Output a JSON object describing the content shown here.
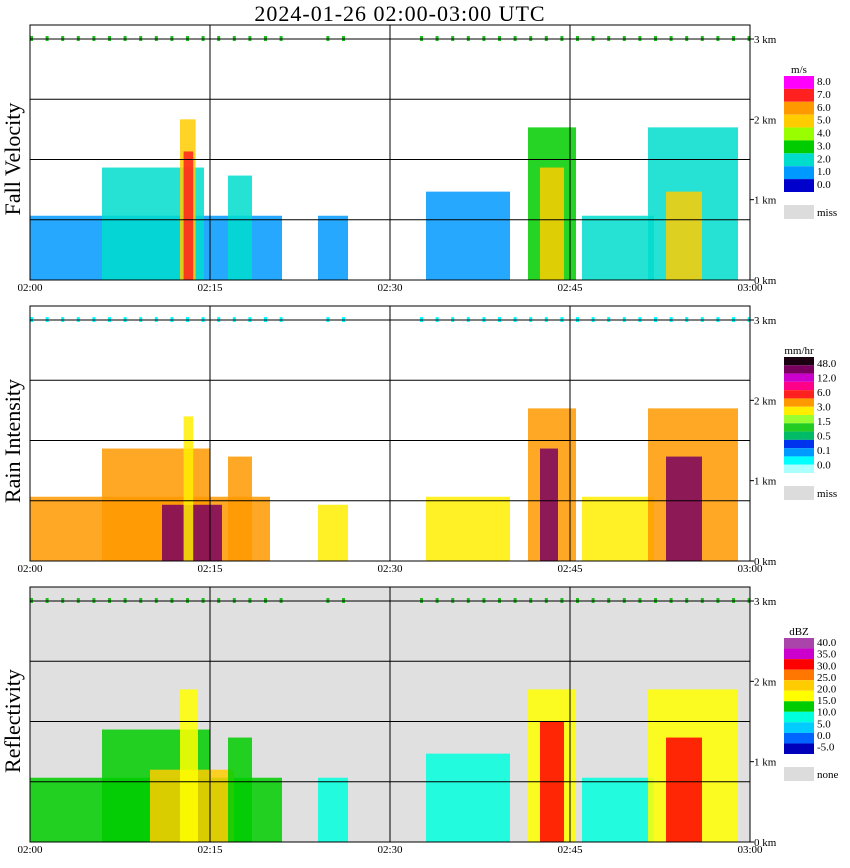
{
  "title": "2024-01-26  02:00-03:00 UTC",
  "x_ticks": [
    "02:00",
    "02:15",
    "02:30",
    "02:45",
    "03:00"
  ],
  "height_ticks": [
    "3 km",
    "2 km",
    "1 km",
    "0 km"
  ],
  "chart_data": [
    {
      "type": "heatmap",
      "ylabel": "Fall Velocity",
      "x_range": [
        "02:00",
        "03:00"
      ],
      "y_range_km": [
        0,
        3
      ],
      "grid": true,
      "legend_unit": "m/s",
      "legend_position": "right",
      "legend_levels": [
        "8.0",
        "7.0",
        "6.0",
        "5.0",
        "4.0",
        "3.0",
        "2.0",
        "1.0",
        "0.0"
      ],
      "legend_colors": [
        "#ff00ff",
        "#ff2020",
        "#ff9900",
        "#ffcc00",
        "#99ff00",
        "#00cc00",
        "#00ddcc",
        "#0099ff",
        "#0000cc"
      ],
      "missing_label": "miss",
      "echo_cells": [
        {
          "t0": 0.0,
          "t1": 21.0,
          "top_km": 0.8,
          "value": 1.0
        },
        {
          "t0": 6.0,
          "t1": 14.5,
          "top_km": 1.4,
          "value": 2.0
        },
        {
          "t0": 12.5,
          "t1": 13.8,
          "top_km": 2.0,
          "value": 5.0
        },
        {
          "t0": 12.8,
          "t1": 13.6,
          "top_km": 1.6,
          "value": 7.0
        },
        {
          "t0": 16.5,
          "t1": 18.5,
          "top_km": 1.3,
          "value": 2.0
        },
        {
          "t0": 24.0,
          "t1": 26.5,
          "top_km": 0.8,
          "value": 1.0
        },
        {
          "t0": 33.0,
          "t1": 40.0,
          "top_km": 1.1,
          "value": 1.0
        },
        {
          "t0": 41.5,
          "t1": 45.5,
          "top_km": 1.9,
          "value": 3.0
        },
        {
          "t0": 42.5,
          "t1": 44.5,
          "top_km": 1.4,
          "value": 5.0
        },
        {
          "t0": 46.0,
          "t1": 52.0,
          "top_km": 0.8,
          "value": 2.0
        },
        {
          "t0": 51.5,
          "t1": 59.0,
          "top_km": 1.9,
          "value": 2.0
        },
        {
          "t0": 53.0,
          "t1": 56.0,
          "top_km": 1.1,
          "value": 5.0
        }
      ]
    },
    {
      "type": "heatmap",
      "ylabel": "Rain Intensity",
      "x_range": [
        "02:00",
        "03:00"
      ],
      "y_range_km": [
        0,
        3
      ],
      "grid": true,
      "legend_unit": "mm/hr",
      "legend_position": "right",
      "legend_levels": [
        "48.0",
        "12.0",
        "6.0",
        "3.0",
        "1.5",
        "0.5",
        "0.1",
        "0.0"
      ],
      "legend_colors": [
        "#1a0010",
        "#7a0060",
        "#cc00cc",
        "#ff0088",
        "#ff2020",
        "#ff9900",
        "#ffee00",
        "#99ff33",
        "#22cc22",
        "#00bb66",
        "#0033ee",
        "#0099ff",
        "#00ffff",
        "#aaffff"
      ],
      "missing_label": "miss",
      "echo_cells": [
        {
          "t0": 0.0,
          "t1": 20.0,
          "top_km": 0.8,
          "value": 0.5
        },
        {
          "t0": 6.0,
          "t1": 15.0,
          "top_km": 1.4,
          "value": 0.5
        },
        {
          "t0": 11.0,
          "t1": 16.0,
          "top_km": 0.7,
          "value": 12.0
        },
        {
          "t0": 12.8,
          "t1": 13.6,
          "top_km": 1.8,
          "value": 0.1
        },
        {
          "t0": 16.5,
          "t1": 18.5,
          "top_km": 1.3,
          "value": 0.5
        },
        {
          "t0": 24.0,
          "t1": 26.5,
          "top_km": 0.7,
          "value": 0.1
        },
        {
          "t0": 33.0,
          "t1": 40.0,
          "top_km": 0.8,
          "value": 0.1
        },
        {
          "t0": 41.5,
          "t1": 45.5,
          "top_km": 1.9,
          "value": 0.5
        },
        {
          "t0": 42.5,
          "t1": 44.0,
          "top_km": 1.4,
          "value": 12.0
        },
        {
          "t0": 46.0,
          "t1": 52.0,
          "top_km": 0.8,
          "value": 0.1
        },
        {
          "t0": 51.5,
          "t1": 59.0,
          "top_km": 1.9,
          "value": 0.5
        },
        {
          "t0": 53.0,
          "t1": 56.0,
          "top_km": 1.3,
          "value": 12.0
        }
      ]
    },
    {
      "type": "heatmap",
      "ylabel": "Reflectivity",
      "x_range": [
        "02:00",
        "03:00"
      ],
      "y_range_km": [
        0,
        3
      ],
      "grid": true,
      "legend_unit": "dBZ",
      "legend_position": "right",
      "legend_levels": [
        "40.0",
        "35.0",
        "30.0",
        "25.0",
        "20.0",
        "15.0",
        "10.0",
        "5.0",
        "0.0",
        "-5.0"
      ],
      "legend_colors": [
        "#aa44aa",
        "#cc00cc",
        "#ff0000",
        "#ff7700",
        "#ffcc00",
        "#ffff00",
        "#00cc00",
        "#00ffdd",
        "#00ccff",
        "#0066ff",
        "#0000bb"
      ],
      "missing_label": "none",
      "echo_cells": [
        {
          "t0": 0.0,
          "t1": 21.0,
          "top_km": 0.8,
          "value": 10.0
        },
        {
          "t0": 6.0,
          "t1": 15.0,
          "top_km": 1.4,
          "value": 10.0
        },
        {
          "t0": 10.0,
          "t1": 17.0,
          "top_km": 0.9,
          "value": 20.0
        },
        {
          "t0": 12.5,
          "t1": 14.0,
          "top_km": 1.9,
          "value": 15.0
        },
        {
          "t0": 16.5,
          "t1": 18.5,
          "top_km": 1.3,
          "value": 10.0
        },
        {
          "t0": 24.0,
          "t1": 26.5,
          "top_km": 0.8,
          "value": 5.0
        },
        {
          "t0": 33.0,
          "t1": 40.0,
          "top_km": 1.1,
          "value": 5.0
        },
        {
          "t0": 41.5,
          "t1": 45.5,
          "top_km": 1.9,
          "value": 15.0
        },
        {
          "t0": 42.5,
          "t1": 44.5,
          "top_km": 1.5,
          "value": 30.0
        },
        {
          "t0": 46.0,
          "t1": 52.0,
          "top_km": 0.8,
          "value": 5.0
        },
        {
          "t0": 51.5,
          "t1": 59.0,
          "top_km": 1.9,
          "value": 15.0
        },
        {
          "t0": 53.0,
          "t1": 56.0,
          "top_km": 1.3,
          "value": 30.0
        }
      ]
    }
  ]
}
